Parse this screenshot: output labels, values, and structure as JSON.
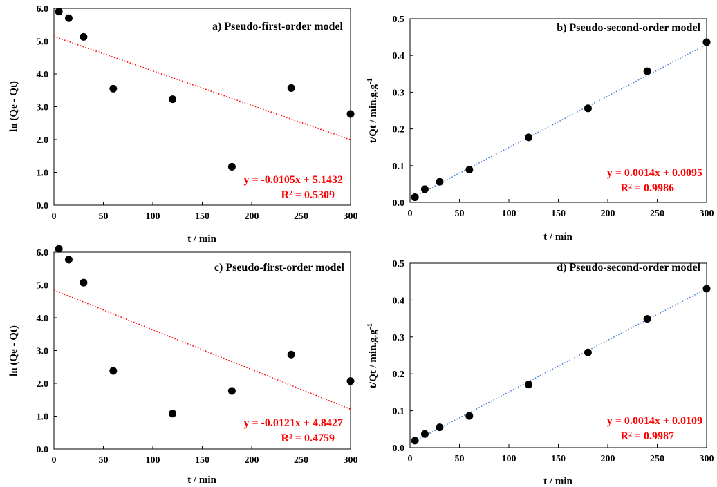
{
  "colors": {
    "points": "#000000",
    "pfo_fit": "#ff0000",
    "pso_fit": "#4a7fd4",
    "equation_text": "#ff0000"
  },
  "chart_data": [
    {
      "id": "a",
      "type": "scatter",
      "title": "a) Pseudo-first-order model",
      "xlabel": "t / min",
      "ylabel": "ln (Qe - Qt)",
      "xlim": [
        0,
        300
      ],
      "ylim": [
        0,
        6.0
      ],
      "xticks": [
        "0",
        "50",
        "100",
        "150",
        "200",
        "250",
        "300"
      ],
      "yticks": [
        "0.0",
        "1.0",
        "2.0",
        "3.0",
        "4.0",
        "5.0",
        "6.0"
      ],
      "ytick_values": [
        0,
        1,
        2,
        3,
        4,
        5,
        6
      ],
      "x": [
        5,
        15,
        30,
        60,
        120,
        180,
        240,
        300
      ],
      "y": [
        5.9,
        5.7,
        5.13,
        3.55,
        3.23,
        1.17,
        3.57,
        2.78
      ],
      "fit": {
        "slope": -0.0105,
        "intercept": 5.1432,
        "x_range": [
          0,
          300
        ],
        "style": "dotted",
        "color": "#ff0000"
      },
      "equation": "y = -0.0105x + 5.1432",
      "r2": "R² = 0.5309",
      "grid": false,
      "legend": "none"
    },
    {
      "id": "b",
      "type": "scatter",
      "title": "b) Pseudo-second-order model",
      "xlabel": "t / min",
      "ylabel": "t/Qt / min.g.g",
      "ylabel_superscript": "-1",
      "xlim": [
        0,
        300
      ],
      "ylim": [
        0,
        0.5
      ],
      "xticks": [
        "0",
        "50",
        "100",
        "150",
        "200",
        "250",
        "300"
      ],
      "yticks": [
        "0.0",
        "0.1",
        "0.2",
        "0.3",
        "0.4",
        "0.5"
      ],
      "ytick_values": [
        0,
        0.1,
        0.2,
        0.3,
        0.4,
        0.5
      ],
      "x": [
        5,
        15,
        30,
        60,
        120,
        180,
        240,
        300
      ],
      "y": [
        0.014,
        0.036,
        0.056,
        0.089,
        0.177,
        0.256,
        0.357,
        0.436
      ],
      "fit": {
        "slope": 0.0014,
        "intercept": 0.0095,
        "x_range": [
          5,
          300
        ],
        "style": "dotted",
        "color": "#4a7fd4"
      },
      "equation": "y = 0.0014x + 0.0095",
      "r2": "R² = 0.9986",
      "grid": false,
      "legend": "none"
    },
    {
      "id": "c",
      "type": "scatter",
      "title": "c) Pseudo-first-order model",
      "xlabel": "t / min",
      "ylabel": "ln (Qe - Qt)",
      "xlim": [
        0,
        300
      ],
      "ylim": [
        0,
        6.0
      ],
      "xticks": [
        "0",
        "50",
        "100",
        "150",
        "200",
        "250",
        "300"
      ],
      "yticks": [
        "0.0",
        "1.0",
        "2.0",
        "3.0",
        "4.0",
        "5.0",
        "6.0"
      ],
      "ytick_values": [
        0,
        1,
        2,
        3,
        4,
        5,
        6
      ],
      "x": [
        5,
        15,
        30,
        60,
        120,
        180,
        240,
        300
      ],
      "y": [
        6.1,
        5.77,
        5.07,
        2.38,
        1.08,
        1.77,
        2.88,
        2.07
      ],
      "fit": {
        "slope": -0.0121,
        "intercept": 4.8427,
        "x_range": [
          0,
          300
        ],
        "style": "dotted",
        "color": "#ff0000"
      },
      "equation": "y = -0.0121x + 4.8427",
      "r2": "R² = 0.4759",
      "grid": false,
      "legend": "none"
    },
    {
      "id": "d",
      "type": "scatter",
      "title": "d) Pseudo-second-order model",
      "xlabel": "t / min",
      "ylabel": "t/Qt / min.g.g",
      "ylabel_superscript": "-1",
      "xlim": [
        0,
        300
      ],
      "ylim": [
        0,
        0.5
      ],
      "xticks": [
        "0",
        "50",
        "100",
        "150",
        "200",
        "250",
        "300"
      ],
      "yticks": [
        "0.0",
        "0.1",
        "0.2",
        "0.3",
        "0.4",
        "0.5"
      ],
      "ytick_values": [
        0,
        0.1,
        0.2,
        0.3,
        0.4,
        0.5
      ],
      "x": [
        5,
        15,
        30,
        60,
        120,
        180,
        240,
        300
      ],
      "y": [
        0.019,
        0.037,
        0.055,
        0.086,
        0.171,
        0.258,
        0.349,
        0.431
      ],
      "fit": {
        "slope": 0.0014,
        "intercept": 0.0109,
        "x_range": [
          5,
          300
        ],
        "style": "dotted",
        "color": "#4a7fd4"
      },
      "equation": "y = 0.0014x + 0.0109",
      "r2": "R² = 0.9987",
      "grid": false,
      "legend": "none"
    }
  ]
}
